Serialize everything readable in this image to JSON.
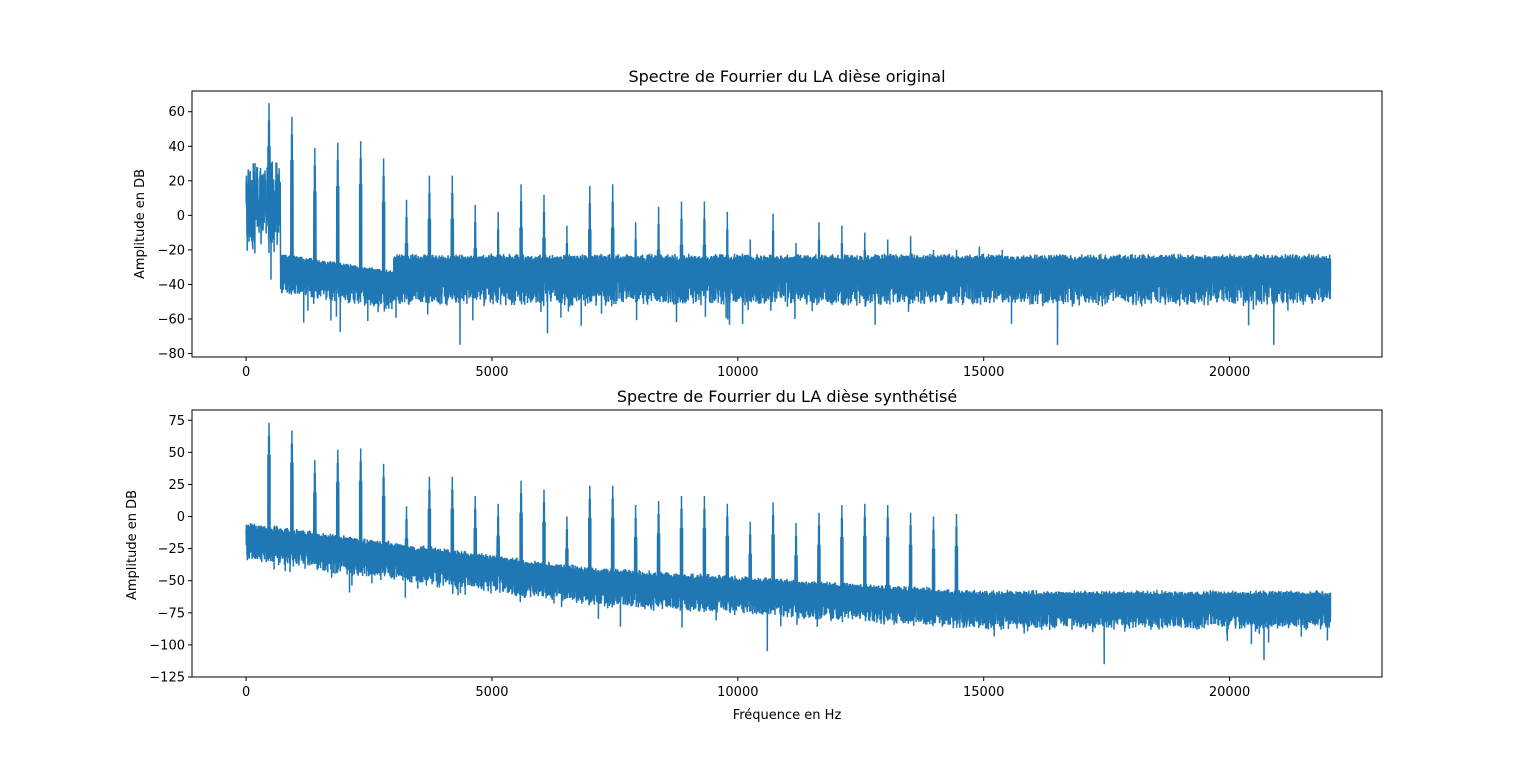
{
  "figure": {
    "background": "#ffffff",
    "line_color": "#1f77b4"
  },
  "chart_data": [
    {
      "type": "line",
      "title": "Spectre de Fourrier du LA dièse original",
      "xlabel": "",
      "ylabel": "Amplitude en DB",
      "xlim": [
        -1100,
        23100
      ],
      "ylim": [
        -82,
        72
      ],
      "xticks": [
        0,
        5000,
        10000,
        15000,
        20000
      ],
      "yticks": [
        -80,
        -60,
        -40,
        -20,
        0,
        20,
        40,
        60
      ],
      "x_range": [
        0,
        22050
      ],
      "fundamental_hz": 466,
      "harmonic_peaks_db": [
        65,
        57,
        39,
        42,
        43,
        33,
        9,
        23,
        23,
        6,
        2,
        18,
        12,
        -6,
        17,
        18,
        -4,
        5,
        8,
        8,
        2,
        -14,
        1,
        -16,
        -4,
        -6,
        -10,
        -14,
        -12,
        -20,
        -20,
        -18,
        -20
      ],
      "noise_floor": {
        "upper_db": -25,
        "lower_db": -48,
        "deepest_dips_db": [
          [
            4350,
            -75
          ],
          [
            16500,
            -75
          ],
          [
            20900,
            -75
          ]
        ]
      },
      "low_freq_band_db": {
        "x": [
          0,
          700
        ],
        "range": [
          -10,
          30
        ]
      },
      "grid": false,
      "legend": "none"
    },
    {
      "type": "line",
      "title": "Spectre de Fourrier du LA dièse synthétisé",
      "xlabel": "Fréquence en Hz",
      "ylabel": "Amplitude en DB",
      "xlim": [
        -1100,
        23100
      ],
      "ylim": [
        -125,
        83
      ],
      "xticks": [
        0,
        5000,
        10000,
        15000,
        20000
      ],
      "yticks": [
        -125,
        -100,
        -75,
        -50,
        -25,
        0,
        25,
        50,
        75
      ],
      "x_range": [
        0,
        22050
      ],
      "fundamental_hz": 466,
      "harmonic_peaks_db": [
        73,
        67,
        44,
        52,
        53,
        41,
        8,
        31,
        31,
        16,
        10,
        28,
        21,
        0,
        24,
        24,
        9,
        12,
        16,
        16,
        10,
        -4,
        11,
        -5,
        3,
        9,
        10,
        9,
        3,
        0,
        2
      ],
      "harmonics_cutoff_hz": 14700,
      "noise_floor": {
        "start_db": -15,
        "mid_db": -50,
        "end_db": -68,
        "deepest_dips_db": [
          [
            10600,
            -105
          ],
          [
            17450,
            -115
          ],
          [
            20700,
            -112
          ]
        ]
      },
      "grid": false,
      "legend": "none"
    }
  ]
}
